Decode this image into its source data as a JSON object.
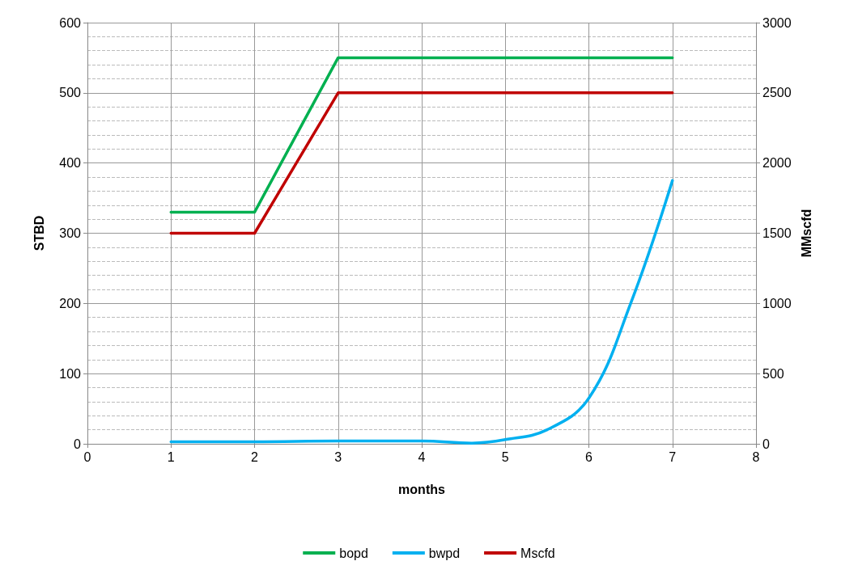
{
  "chart_data": {
    "type": "line",
    "xlabel": "months",
    "ylabel": "STBD",
    "y2label": "MMscfd",
    "x": [
      1,
      2,
      3,
      4,
      5,
      6,
      7
    ],
    "series": [
      {
        "name": "bopd",
        "color": "#00b050",
        "values": [
          330,
          330,
          550,
          550,
          550,
          550,
          550
        ]
      },
      {
        "name": "bwpd",
        "color": "#00b0f0",
        "x": [
          1,
          2,
          3,
          4,
          4.6,
          5,
          5.5,
          6,
          6.5,
          7
        ],
        "values": [
          3,
          3,
          4,
          4,
          1,
          6,
          20,
          65,
          200,
          375
        ]
      },
      {
        "name": "Mscfd",
        "color": "#c00000",
        "axis": "y2",
        "values": [
          1500,
          1500,
          2500,
          2500,
          2500,
          2500,
          2500
        ]
      }
    ],
    "xlim": [
      0,
      8
    ],
    "xticks": [
      0,
      1,
      2,
      3,
      4,
      5,
      6,
      7,
      8
    ],
    "ylim": [
      0,
      600
    ],
    "yticks": [
      0,
      100,
      200,
      300,
      400,
      500,
      600
    ],
    "y2lim": [
      0,
      3000
    ],
    "y2ticks": [
      0,
      500,
      1000,
      1500,
      2000,
      2500,
      3000
    ],
    "grid": true,
    "legend": "bottom",
    "marker": "none",
    "line_style": "solid"
  }
}
